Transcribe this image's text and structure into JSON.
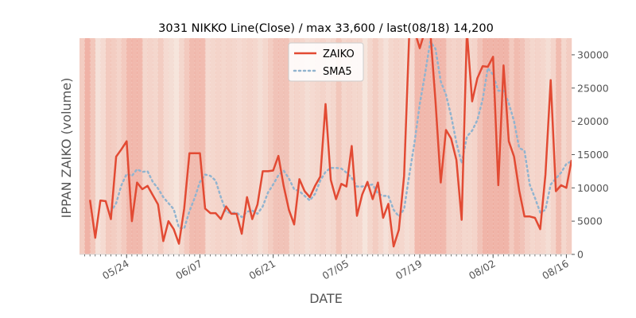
{
  "chart_data": {
    "type": "line",
    "title": "3031 NIKKO Line(Close) / max 33,600 / last(08/18) 14,200",
    "xlabel": "DATE",
    "ylabel": "IPPAN ZAIKO (volume)",
    "ylim": [
      0,
      32500
    ],
    "y_ticks": [
      "0",
      "5000",
      "10000",
      "15000",
      "20000",
      "25000",
      "30000"
    ],
    "y_tick_values": [
      0,
      5000,
      10000,
      15000,
      20000,
      25000,
      30000
    ],
    "x_ticks": [
      "05/24",
      "06/07",
      "06/21",
      "07/05",
      "07/19",
      "08/02",
      "08/16"
    ],
    "x_tick_positions": [
      8,
      22,
      36,
      50,
      64,
      78,
      92
    ],
    "x_range": [
      -1,
      93
    ],
    "x_start": 0,
    "x_end": 92,
    "legend_placement": "top-center",
    "grid": false,
    "colors": {
      "zaiko": "#e24a33",
      "sma5": "#92b4cf",
      "frame": "#d9d9d9",
      "text": "#555555"
    },
    "series": [
      {
        "name": "ZAIKO",
        "style": "solid",
        "points": [
          [
            1,
            8200
          ],
          [
            2,
            2500
          ],
          [
            3,
            8100
          ],
          [
            4,
            8000
          ],
          [
            5,
            5300
          ],
          [
            6,
            14700
          ],
          [
            7,
            15800
          ],
          [
            8,
            17000
          ],
          [
            9,
            5000
          ],
          [
            10,
            10800
          ],
          [
            11,
            9800
          ],
          [
            12,
            10300
          ],
          [
            13,
            8900
          ],
          [
            14,
            7500
          ],
          [
            15,
            2000
          ],
          [
            16,
            5000
          ],
          [
            17,
            3800
          ],
          [
            18,
            1600
          ],
          [
            19,
            6900
          ],
          [
            20,
            15200
          ],
          [
            21,
            15200
          ],
          [
            22,
            15200
          ],
          [
            23,
            6900
          ],
          [
            24,
            6200
          ],
          [
            25,
            6200
          ],
          [
            26,
            5300
          ],
          [
            27,
            7200
          ],
          [
            28,
            6100
          ],
          [
            29,
            6100
          ],
          [
            30,
            3100
          ],
          [
            31,
            8600
          ],
          [
            32,
            5300
          ],
          [
            33,
            7500
          ],
          [
            34,
            12500
          ],
          [
            35,
            12500
          ],
          [
            36,
            12600
          ],
          [
            37,
            14800
          ],
          [
            38,
            10300
          ],
          [
            39,
            6700
          ],
          [
            40,
            4500
          ],
          [
            41,
            11300
          ],
          [
            42,
            9500
          ],
          [
            43,
            8600
          ],
          [
            44,
            10300
          ],
          [
            45,
            11700
          ],
          [
            46,
            22600
          ],
          [
            47,
            11200
          ],
          [
            48,
            8300
          ],
          [
            49,
            10600
          ],
          [
            50,
            10200
          ],
          [
            51,
            16300
          ],
          [
            52,
            5800
          ],
          [
            53,
            9000
          ],
          [
            54,
            10900
          ],
          [
            55,
            8300
          ],
          [
            56,
            10800
          ],
          [
            57,
            5500
          ],
          [
            58,
            7600
          ],
          [
            59,
            1200
          ],
          [
            60,
            3700
          ],
          [
            61,
            11800
          ],
          [
            62,
            33600
          ],
          [
            63,
            33600
          ],
          [
            64,
            31000
          ],
          [
            65,
            33600
          ],
          [
            66,
            33600
          ],
          [
            67,
            23000
          ],
          [
            68,
            10800
          ],
          [
            69,
            18700
          ],
          [
            70,
            17400
          ],
          [
            71,
            14200
          ],
          [
            72,
            5200
          ],
          [
            73,
            33600
          ],
          [
            74,
            23000
          ],
          [
            75,
            26500
          ],
          [
            76,
            28300
          ],
          [
            77,
            28200
          ],
          [
            78,
            29700
          ],
          [
            79,
            10400
          ],
          [
            80,
            28400
          ],
          [
            81,
            17000
          ],
          [
            82,
            14700
          ],
          [
            83,
            9600
          ],
          [
            84,
            5700
          ],
          [
            85,
            5700
          ],
          [
            86,
            5500
          ],
          [
            87,
            3800
          ],
          [
            88,
            12000
          ],
          [
            89,
            26200
          ],
          [
            90,
            9500
          ],
          [
            91,
            10400
          ],
          [
            92,
            10000
          ],
          [
            93,
            14200
          ]
        ]
      },
      {
        "name": "SMA5",
        "style": "dotted",
        "points": [
          [
            5,
            6400
          ],
          [
            6,
            7700
          ],
          [
            7,
            10400
          ],
          [
            8,
            12100
          ],
          [
            9,
            11800
          ],
          [
            10,
            12800
          ],
          [
            11,
            12400
          ],
          [
            12,
            12500
          ],
          [
            13,
            10900
          ],
          [
            14,
            9900
          ],
          [
            15,
            8600
          ],
          [
            16,
            7700
          ],
          [
            17,
            6800
          ],
          [
            18,
            4000
          ],
          [
            19,
            3900
          ],
          [
            20,
            6500
          ],
          [
            21,
            8500
          ],
          [
            22,
            10900
          ],
          [
            23,
            12000
          ],
          [
            24,
            11800
          ],
          [
            25,
            11100
          ],
          [
            26,
            8600
          ],
          [
            27,
            6400
          ],
          [
            28,
            6200
          ],
          [
            29,
            6300
          ],
          [
            30,
            5600
          ],
          [
            31,
            6400
          ],
          [
            32,
            6600
          ],
          [
            33,
            6100
          ],
          [
            34,
            7200
          ],
          [
            35,
            9300
          ],
          [
            36,
            10500
          ],
          [
            37,
            11900
          ],
          [
            38,
            12600
          ],
          [
            39,
            11400
          ],
          [
            40,
            9800
          ],
          [
            41,
            9500
          ],
          [
            42,
            8800
          ],
          [
            43,
            8100
          ],
          [
            44,
            9100
          ],
          [
            45,
            11100
          ],
          [
            46,
            12400
          ],
          [
            47,
            13000
          ],
          [
            48,
            13000
          ],
          [
            49,
            12900
          ],
          [
            50,
            12300
          ],
          [
            51,
            11500
          ],
          [
            52,
            10200
          ],
          [
            53,
            10200
          ],
          [
            54,
            10400
          ],
          [
            55,
            10500
          ],
          [
            56,
            9100
          ],
          [
            57,
            8800
          ],
          [
            58,
            8800
          ],
          [
            59,
            6700
          ],
          [
            60,
            5700
          ],
          [
            61,
            6800
          ],
          [
            62,
            12000
          ],
          [
            63,
            16800
          ],
          [
            64,
            22600
          ],
          [
            65,
            27100
          ],
          [
            66,
            32000
          ],
          [
            67,
            30900
          ],
          [
            68,
            26000
          ],
          [
            69,
            24000
          ],
          [
            70,
            20800
          ],
          [
            71,
            16800
          ],
          [
            72,
            13700
          ],
          [
            73,
            17700
          ],
          [
            74,
            18600
          ],
          [
            75,
            20200
          ],
          [
            76,
            23300
          ],
          [
            77,
            28000
          ],
          [
            78,
            27000
          ],
          [
            79,
            24600
          ],
          [
            80,
            24600
          ],
          [
            81,
            22700
          ],
          [
            82,
            20000
          ],
          [
            83,
            16000
          ],
          [
            84,
            15600
          ],
          [
            85,
            10500
          ],
          [
            86,
            8500
          ],
          [
            87,
            6300
          ],
          [
            88,
            6700
          ],
          [
            89,
            10500
          ],
          [
            90,
            11400
          ],
          [
            91,
            12300
          ],
          [
            92,
            13600
          ],
          [
            93,
            14000
          ]
        ]
      }
    ]
  },
  "band_opacities": [
    0.45,
    0.85,
    0.55,
    0.15,
    0.25,
    0.5,
    0.45,
    0.35,
    0.5,
    0.75,
    0.75,
    0.75,
    0.3,
    0.35,
    0.3,
    0.45,
    0.25,
    0.2,
    0.1,
    0.3,
    0.5,
    0.7,
    0.7,
    0.7,
    0.25,
    0.3,
    0.35,
    0.3,
    0.35,
    0.3,
    0.25,
    0.3,
    0.35,
    0.3,
    0.2,
    0.3,
    0.45,
    0.6,
    0.6,
    0.6,
    0.3,
    0.35,
    0.3,
    0.2,
    0.25,
    0.3,
    0.35,
    0.25,
    0.3,
    0.55,
    0.3,
    0.35,
    0.3,
    0.3,
    0.1,
    0.3,
    0.45,
    0.3,
    0.15,
    0.3,
    0.35,
    0.3,
    0.2,
    0.25,
    0.75,
    0.75,
    0.75,
    0.75,
    0.75,
    0.75,
    0.4,
    0.35,
    0.4,
    0.3,
    0.3,
    0.35,
    0.6,
    0.8,
    0.8,
    0.8,
    0.8,
    0.8,
    0.5,
    0.7,
    0.6,
    0.4,
    0.3,
    0.35,
    0.3,
    0.2,
    0.35,
    0.7,
    0.3,
    0.45
  ]
}
